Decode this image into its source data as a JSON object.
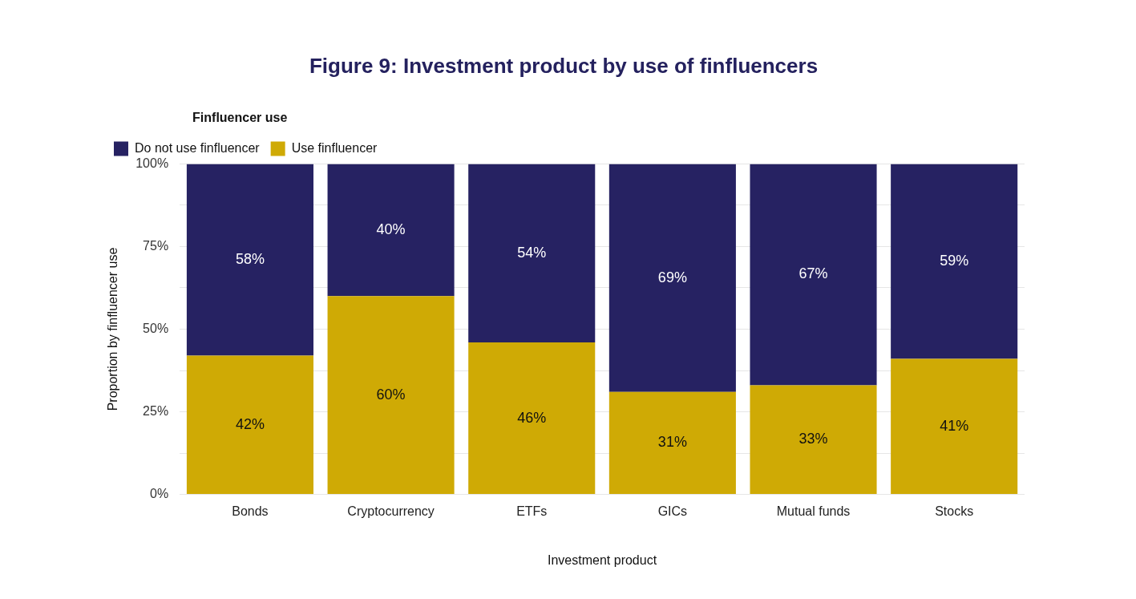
{
  "chart_data": {
    "type": "bar",
    "title": "Figure 9: Investment product by use of finfluencers",
    "xlabel": "Investment product",
    "ylabel": "Proportion by finfluencer use",
    "legend_title": "Finfluencer use",
    "categories": [
      "Bonds",
      "Cryptocurrency",
      "ETFs",
      "GICs",
      "Mutual funds",
      "Stocks"
    ],
    "series": [
      {
        "name": "Use finfluencer",
        "color": "#cfaa05",
        "values": [
          42,
          60,
          46,
          31,
          33,
          41
        ],
        "value_labels": [
          "42%",
          "60%",
          "46%",
          "31%",
          "33%",
          "41%"
        ]
      },
      {
        "name": "Do not use finfluencer",
        "color": "#262262",
        "values": [
          58,
          40,
          54,
          69,
          67,
          59
        ],
        "value_labels": [
          "58%",
          "40%",
          "54%",
          "69%",
          "67%",
          "59%"
        ]
      }
    ],
    "stacked": true,
    "ylim": [
      0,
      100
    ],
    "yticks": [
      {
        "value": 0,
        "label": "0%"
      },
      {
        "value": 12.5,
        "label": null
      },
      {
        "value": 25,
        "label": "25%"
      },
      {
        "value": 37.5,
        "label": null
      },
      {
        "value": 50,
        "label": "50%"
      },
      {
        "value": 62.5,
        "label": null
      },
      {
        "value": 75,
        "label": "75%"
      },
      {
        "value": 87.5,
        "label": null
      },
      {
        "value": 100,
        "label": "100%"
      }
    ],
    "grid": "y",
    "legend": "top left"
  }
}
